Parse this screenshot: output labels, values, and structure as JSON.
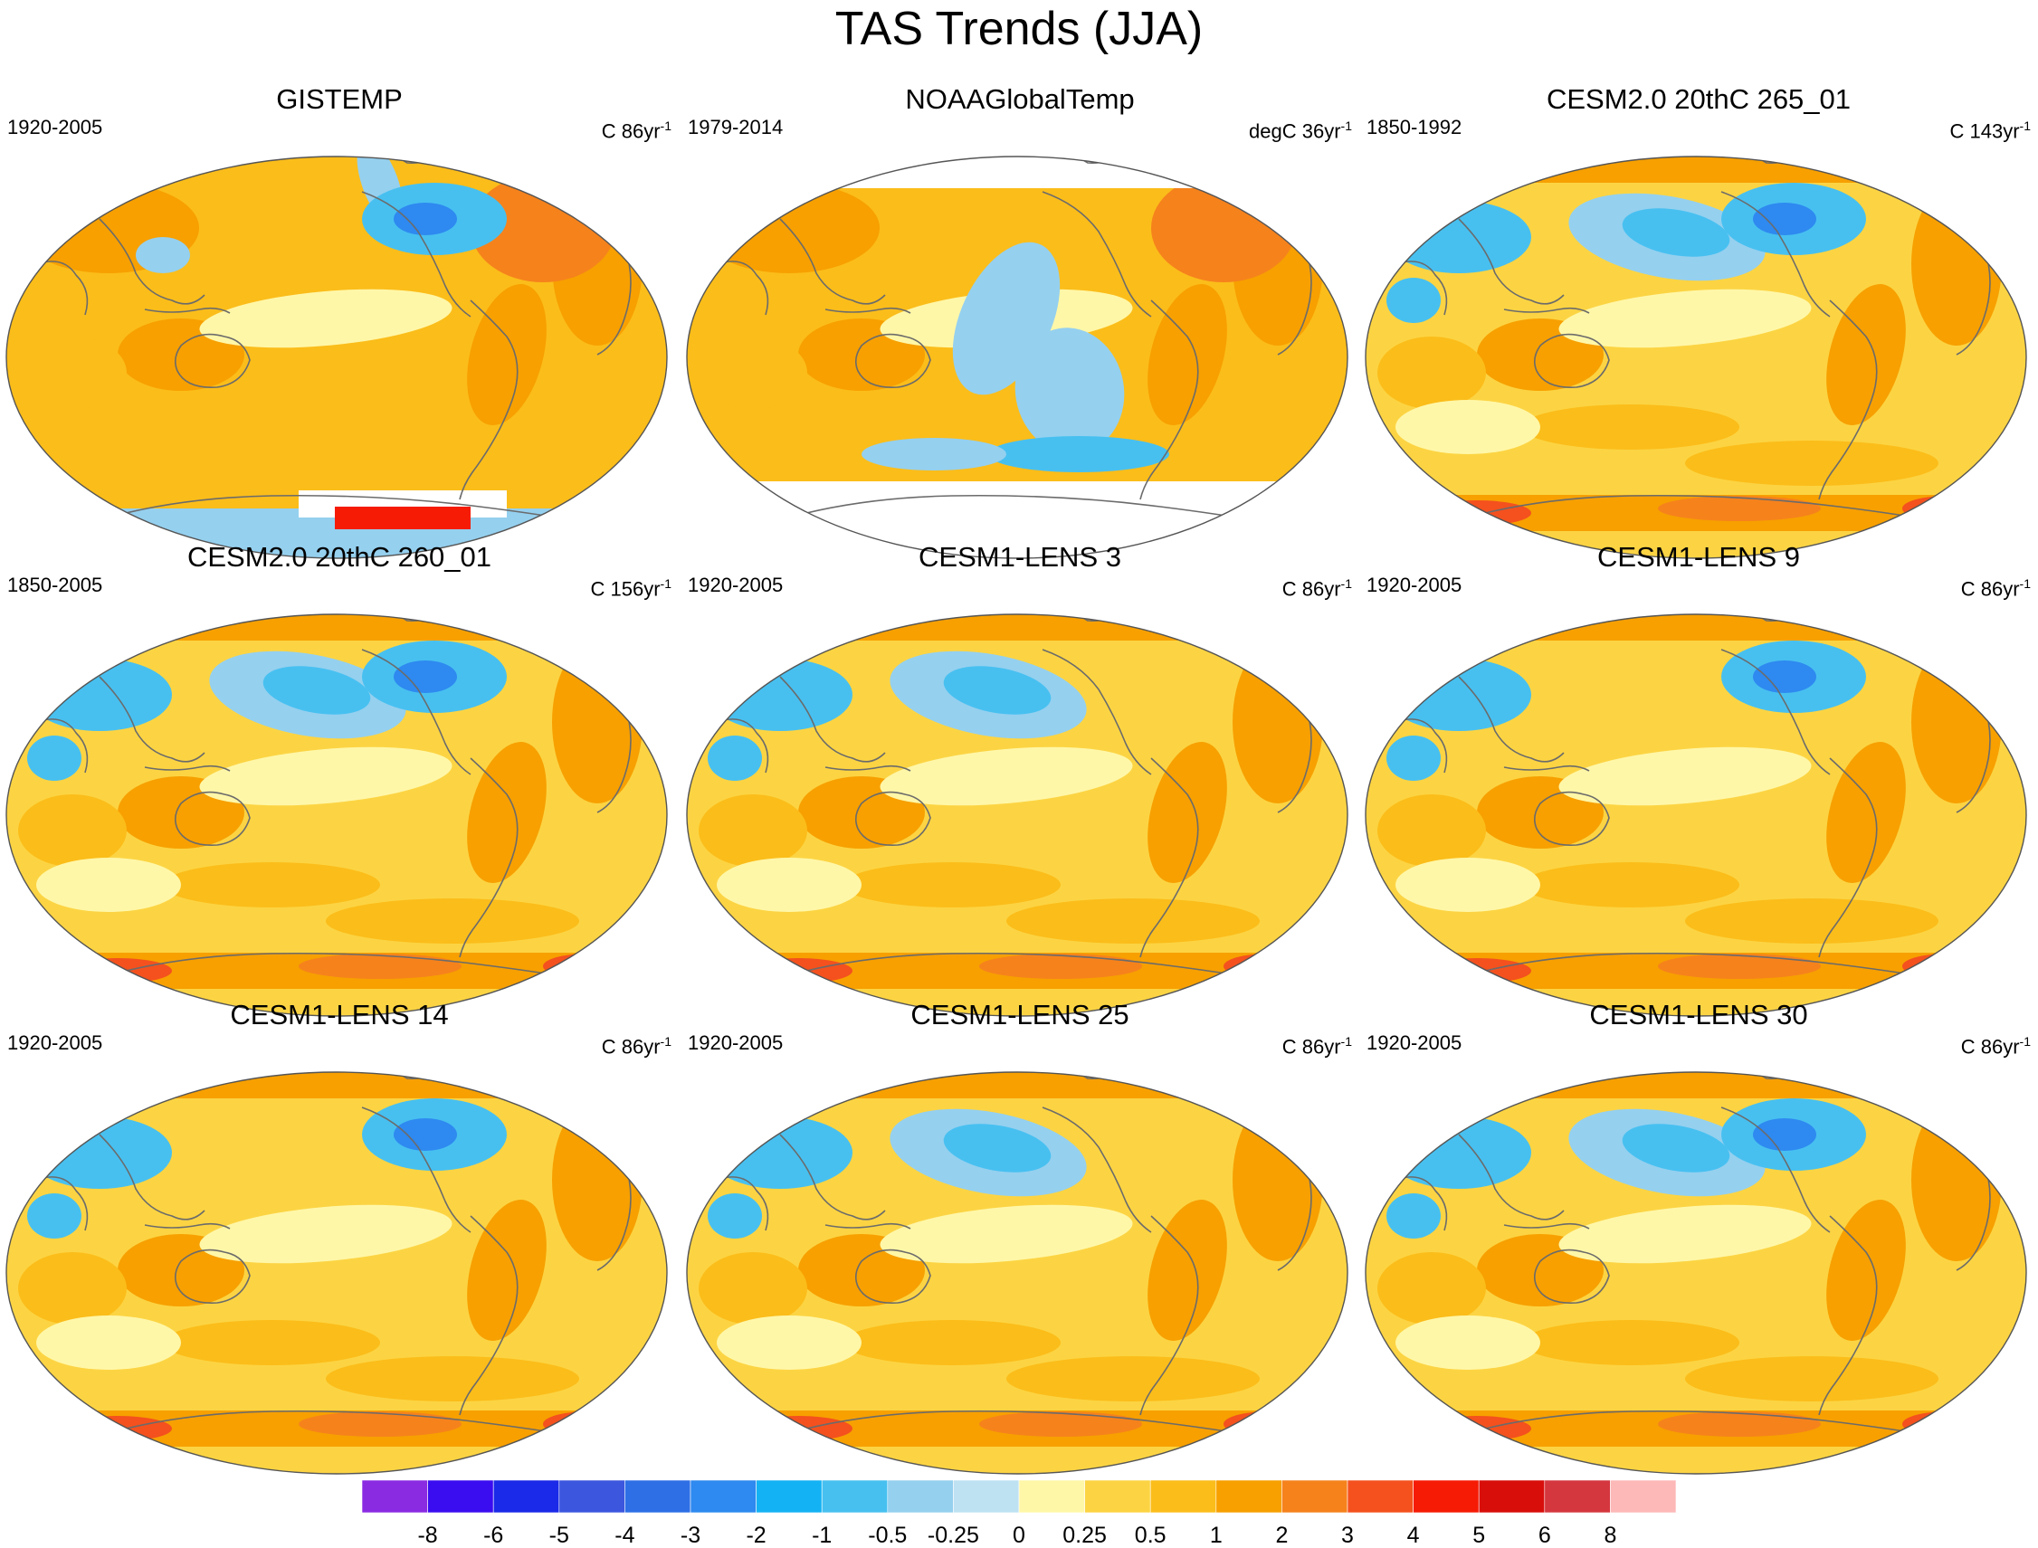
{
  "figure": {
    "title": "TAS Trends (JJA)",
    "panels": [
      {
        "id": "p1",
        "name": "GISTEMP",
        "period": "1920-2005",
        "units_prefix": "C 86yr",
        "units_exp": "-1",
        "warm_level": "mid",
        "has_missing_poles": "antarctic-patches",
        "cool_regions": [
          "arctic-strip",
          "north-america"
        ]
      },
      {
        "id": "p2",
        "name": "NOAAGlobalTemp",
        "period": "1979-2014",
        "units_prefix": "degC 36yr",
        "units_exp": "-1",
        "warm_level": "mid",
        "has_missing_poles": "both",
        "cool_regions": [
          "east-pacific-tongue",
          "southern-ocean"
        ]
      },
      {
        "id": "p3",
        "name": "CESM2.0 20thC 265_01",
        "period": "1850-1992",
        "units_prefix": "C 143yr",
        "units_exp": "-1",
        "warm_level": "low",
        "has_missing_poles": "none",
        "cool_regions": [
          "north-pacific",
          "north-america",
          "eurasia"
        ]
      },
      {
        "id": "p4",
        "name": "CESM2.0 20thC 260_01",
        "period": "1850-2005",
        "units_prefix": "C 156yr",
        "units_exp": "-1",
        "warm_level": "low",
        "has_missing_poles": "none",
        "cool_regions": [
          "north-pacific",
          "north-america",
          "eurasia"
        ]
      },
      {
        "id": "p5",
        "name": "CESM1-LENS 3",
        "period": "1920-2005",
        "units_prefix": "C 86yr",
        "units_exp": "-1",
        "warm_level": "low",
        "has_missing_poles": "none",
        "cool_regions": [
          "north-pacific",
          "eurasia"
        ]
      },
      {
        "id": "p6",
        "name": "CESM1-LENS 9",
        "period": "1920-2005",
        "units_prefix": "C 86yr",
        "units_exp": "-1",
        "warm_level": "low",
        "has_missing_poles": "none",
        "cool_regions": [
          "north-america",
          "eurasia"
        ]
      },
      {
        "id": "p7",
        "name": "CESM1-LENS 14",
        "period": "1920-2005",
        "units_prefix": "C 86yr",
        "units_exp": "-1",
        "warm_level": "low",
        "has_missing_poles": "none",
        "cool_regions": [
          "north-america",
          "eurasia"
        ]
      },
      {
        "id": "p8",
        "name": "CESM1-LENS 25",
        "period": "1920-2005",
        "units_prefix": "C 86yr",
        "units_exp": "-1",
        "warm_level": "low",
        "has_missing_poles": "none",
        "cool_regions": [
          "north-pacific",
          "eurasia"
        ]
      },
      {
        "id": "p9",
        "name": "CESM1-LENS 30",
        "period": "1920-2005",
        "units_prefix": "C 86yr",
        "units_exp": "-1",
        "warm_level": "low",
        "has_missing_poles": "none",
        "cool_regions": [
          "north-pacific",
          "north-america",
          "eurasia"
        ]
      }
    ]
  },
  "colorbar": {
    "labels": [
      "-8",
      "-6",
      "-5",
      "-4",
      "-3",
      "-2",
      "-1",
      "-0.5",
      "-0.25",
      "0",
      "0.25",
      "0.5",
      "1",
      "2",
      "3",
      "4",
      "5",
      "6",
      "8"
    ],
    "colors": [
      "#8a2be2",
      "#3a0cf0",
      "#1b29e8",
      "#3c56de",
      "#2e6fe6",
      "#2e89f0",
      "#13b2f4",
      "#47c0f0",
      "#95d0ef",
      "#bfe2f2",
      "#fff7a8",
      "#fcd443",
      "#fbbd1a",
      "#f7a000",
      "#f6821c",
      "#f4511e",
      "#f61b05",
      "#d80e0a",
      "#d5373f",
      "#fdb8b8"
    ]
  }
}
